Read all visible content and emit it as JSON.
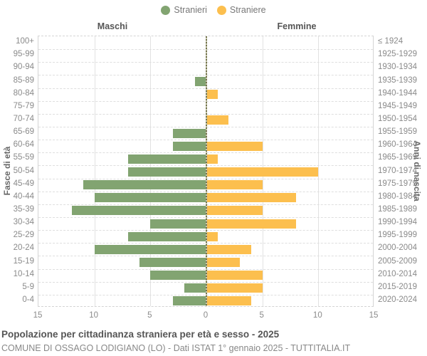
{
  "legend": {
    "items": [
      {
        "label": "Stranieri",
        "color": "#82a471"
      },
      {
        "label": "Straniere",
        "color": "#fcbf4e"
      }
    ]
  },
  "headers": {
    "left": "Maschi",
    "right": "Femmine"
  },
  "axis": {
    "left_label": "Fasce di età",
    "right_label": "Anni di nascita",
    "x_ticks": [
      "15",
      "10",
      "5",
      "0",
      "5",
      "10",
      "15"
    ]
  },
  "footer": {
    "title": "Popolazione per cittadinanza straniera per età e sesso - 2025",
    "subtitle": "COMUNE DI OSSAGO LODIGIANO (LO) - Dati ISTAT 1° gennaio 2025 - TUTTITALIA.IT"
  },
  "chart_data": {
    "type": "bar",
    "subtype": "population-pyramid",
    "title": "Popolazione per cittadinanza straniera per età e sesso - 2025",
    "xlim": [
      0,
      15
    ],
    "x_tick_step": 5,
    "grid": true,
    "legend_position": "top-center",
    "categories_age": [
      "100+",
      "95-99",
      "90-94",
      "85-89",
      "80-84",
      "75-79",
      "70-74",
      "65-69",
      "60-64",
      "55-59",
      "50-54",
      "45-49",
      "40-44",
      "35-39",
      "30-34",
      "25-29",
      "20-24",
      "15-19",
      "10-14",
      "5-9",
      "0-4"
    ],
    "categories_birth_years": [
      "≤ 1924",
      "1925-1929",
      "1930-1934",
      "1935-1939",
      "1940-1944",
      "1945-1949",
      "1950-1954",
      "1955-1959",
      "1960-1964",
      "1965-1969",
      "1970-1974",
      "1975-1979",
      "1980-1984",
      "1985-1989",
      "1990-1994",
      "1995-1999",
      "2000-2004",
      "2005-2009",
      "2010-2014",
      "2015-2019",
      "2020-2024"
    ],
    "series": [
      {
        "name": "Stranieri",
        "side": "left",
        "color": "#82a471",
        "values": [
          0,
          0,
          0,
          1,
          0,
          0,
          0,
          3,
          3,
          7,
          7,
          11,
          10,
          12,
          5,
          7,
          10,
          6,
          5,
          2,
          3
        ]
      },
      {
        "name": "Straniere",
        "side": "right",
        "color": "#fcbf4e",
        "values": [
          0,
          0,
          0,
          0,
          1,
          0,
          2,
          0,
          5,
          1,
          10,
          5,
          8,
          5,
          8,
          1,
          4,
          3,
          5,
          5,
          4
        ]
      }
    ]
  }
}
